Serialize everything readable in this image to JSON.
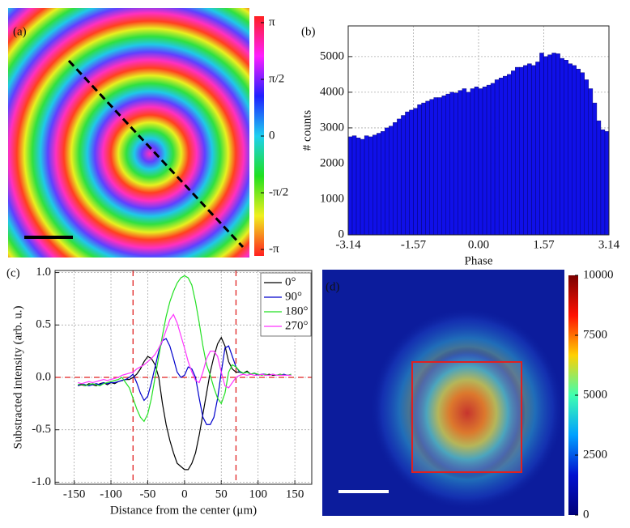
{
  "chart_data": [
    {
      "type": "heatmap",
      "panel_label": "(a)",
      "colormap": "hsv",
      "clim": [
        -3.32,
        3.32
      ],
      "cticks": [
        {
          "value": 3.1416,
          "label": "π"
        },
        {
          "value": 1.5708,
          "label": "π/2"
        },
        0,
        {
          "value": -1.5708,
          "label": "-π/2"
        },
        {
          "value": -3.1416,
          "label": "-π"
        }
      ]
    },
    {
      "type": "histogram",
      "panel_label": "(b)",
      "xlabel": "Phase",
      "ylabel": "# counts",
      "color": "#1010e8",
      "grid": true,
      "bins": [
        -3.14,
        -3.042,
        -2.944,
        -2.846,
        -2.748,
        -2.649,
        -2.551,
        -2.453,
        -2.355,
        -2.257,
        -2.159,
        -2.061,
        -1.962,
        -1.864,
        -1.766,
        -1.668,
        -1.57,
        -1.472,
        -1.374,
        -1.276,
        -1.177,
        -1.079,
        -0.981,
        -0.883,
        -0.785,
        -0.687,
        -0.589,
        -0.491,
        -0.392,
        -0.294,
        -0.196,
        -0.098,
        0,
        0.098,
        0.196,
        0.294,
        0.392,
        0.491,
        0.589,
        0.687,
        0.785,
        0.883,
        0.981,
        1.079,
        1.177,
        1.276,
        1.374,
        1.472,
        1.57,
        1.668,
        1.766,
        1.864,
        1.962,
        2.061,
        2.159,
        2.257,
        2.355,
        2.453,
        2.551,
        2.649,
        2.748,
        2.846,
        2.944,
        3.042,
        3.14
      ],
      "counts": [
        2750,
        2780,
        2720,
        2680,
        2780,
        2750,
        2800,
        2850,
        2900,
        3000,
        3050,
        3150,
        3250,
        3350,
        3450,
        3500,
        3550,
        3650,
        3700,
        3750,
        3800,
        3850,
        3850,
        3900,
        3950,
        4000,
        3980,
        4050,
        4100,
        4000,
        4100,
        4150,
        4100,
        4150,
        4200,
        4250,
        4350,
        4400,
        4450,
        4500,
        4600,
        4700,
        4700,
        4750,
        4800,
        4750,
        4850,
        5100,
        5000,
        5050,
        5100,
        5080,
        4950,
        4900,
        4800,
        4750,
        4650,
        4550,
        4350,
        4100,
        3700,
        3200,
        2950,
        2900
      ],
      "xlim": [
        -3.14,
        3.14
      ],
      "xticks": [
        -3.14,
        -1.57,
        {
          "value": 0,
          "label": "0.00"
        },
        1.57,
        3.14
      ],
      "ylim": [
        0,
        5860
      ],
      "yticks": [
        0,
        1000,
        2000,
        3000,
        4000,
        5000
      ]
    },
    {
      "type": "line",
      "panel_label": "(c)",
      "xlabel": "Distance from the center (μm)",
      "ylabel": "Substracted intensity (arb. u.)",
      "grid": true,
      "x": [
        -145,
        -140,
        -135,
        -130,
        -125,
        -120,
        -115,
        -110,
        -105,
        -100,
        -95,
        -90,
        -85,
        -80,
        -75,
        -70,
        -65,
        -60,
        -55,
        -50,
        -45,
        -40,
        -35,
        -30,
        -25,
        -20,
        -15,
        -10,
        -5,
        0,
        5,
        10,
        15,
        20,
        25,
        30,
        35,
        40,
        45,
        50,
        55,
        60,
        65,
        70,
        75,
        80,
        85,
        90,
        95,
        100,
        105,
        110,
        115,
        120,
        125,
        130,
        135,
        140,
        145
      ],
      "series": [
        {
          "name": "0°",
          "color": "#000000",
          "values": [
            -0.08,
            -0.07,
            -0.08,
            -0.06,
            -0.07,
            -0.08,
            -0.06,
            -0.05,
            -0.07,
            -0.05,
            -0.06,
            -0.04,
            -0.03,
            -0.02,
            -0.02,
            0.0,
            0.03,
            0.08,
            0.15,
            0.2,
            0.18,
            0.12,
            0.0,
            -0.25,
            -0.45,
            -0.6,
            -0.72,
            -0.82,
            -0.85,
            -0.88,
            -0.88,
            -0.82,
            -0.72,
            -0.55,
            -0.35,
            -0.15,
            0.05,
            0.2,
            0.32,
            0.38,
            0.3,
            0.15,
            0.08,
            0.05,
            0.05,
            0.04,
            0.06,
            0.03,
            0.04,
            0.02,
            0.03,
            0.02,
            0.03,
            0.02,
            0.02,
            0.03,
            0.02,
            0.02,
            0.02
          ]
        },
        {
          "name": "90°",
          "color": "#0000cc",
          "values": [
            -0.08,
            -0.06,
            -0.07,
            -0.08,
            -0.07,
            -0.06,
            -0.07,
            -0.05,
            -0.06,
            -0.05,
            -0.05,
            -0.04,
            -0.03,
            -0.02,
            0.0,
            0.03,
            -0.05,
            -0.15,
            -0.22,
            -0.18,
            -0.05,
            0.1,
            0.25,
            0.35,
            0.37,
            0.3,
            0.18,
            0.05,
            0.0,
            0.02,
            0.1,
            0.08,
            0.0,
            -0.2,
            -0.38,
            -0.45,
            -0.45,
            -0.38,
            -0.2,
            0.05,
            0.28,
            0.3,
            0.2,
            0.1,
            0.05,
            0.04,
            0.05,
            0.03,
            0.04,
            0.02,
            0.03,
            0.03,
            0.02,
            0.03,
            0.02,
            0.02,
            0.03,
            0.02,
            0.02
          ]
        },
        {
          "name": "180°",
          "color": "#22e022",
          "values": [
            -0.07,
            -0.06,
            -0.08,
            -0.07,
            -0.06,
            -0.07,
            -0.08,
            -0.06,
            -0.05,
            -0.04,
            -0.03,
            -0.02,
            0.0,
            -0.05,
            -0.1,
            -0.2,
            -0.3,
            -0.38,
            -0.42,
            -0.35,
            -0.2,
            0.0,
            0.2,
            0.4,
            0.58,
            0.72,
            0.82,
            0.9,
            0.95,
            0.97,
            0.95,
            0.88,
            0.72,
            0.52,
            0.3,
            0.12,
            0.02,
            -0.1,
            -0.2,
            -0.25,
            -0.15,
            0.05,
            0.12,
            0.1,
            0.06,
            0.04,
            0.05,
            0.03,
            0.04,
            0.03,
            0.02,
            0.03,
            0.02,
            0.03,
            0.02,
            0.03,
            0.02,
            0.02,
            0.03
          ]
        },
        {
          "name": "270°",
          "color": "#ff33ff",
          "values": [
            -0.05,
            -0.06,
            -0.05,
            -0.04,
            -0.05,
            -0.04,
            -0.03,
            -0.02,
            -0.03,
            -0.02,
            -0.01,
            0.0,
            0.02,
            0.03,
            0.04,
            0.05,
            0.08,
            0.1,
            0.12,
            0.15,
            0.18,
            0.22,
            0.28,
            0.35,
            0.45,
            0.55,
            0.6,
            0.52,
            0.4,
            0.28,
            0.15,
            0.05,
            -0.03,
            -0.05,
            0.05,
            0.18,
            0.25,
            0.25,
            0.2,
            0.05,
            -0.08,
            -0.1,
            -0.05,
            0.0,
            0.02,
            0.03,
            0.02,
            0.03,
            0.02,
            0.02,
            0.03,
            0.02,
            0.02,
            0.03,
            0.02,
            0.02,
            0.02,
            0.02,
            0.02
          ]
        }
      ],
      "vlines": [
        -70,
        70
      ],
      "hlines": [
        0
      ],
      "refline_color": "#e02020",
      "xlim": [
        -176,
        173
      ],
      "xticks": [
        -150,
        -100,
        -50,
        0,
        50,
        100,
        150
      ],
      "ylim": [
        -1.02,
        1.02
      ],
      "yticks": [
        {
          "value": -1,
          "label": "-1.0"
        },
        -0.5,
        {
          "value": 0,
          "label": "0.0"
        },
        0.5,
        {
          "value": 1,
          "label": "1.0"
        }
      ]
    },
    {
      "type": "heatmap",
      "panel_label": "(d)",
      "colormap": "jet",
      "clim": [
        0,
        10000
      ],
      "cticks": [
        0,
        2500,
        5000,
        7500,
        10000
      ]
    }
  ]
}
